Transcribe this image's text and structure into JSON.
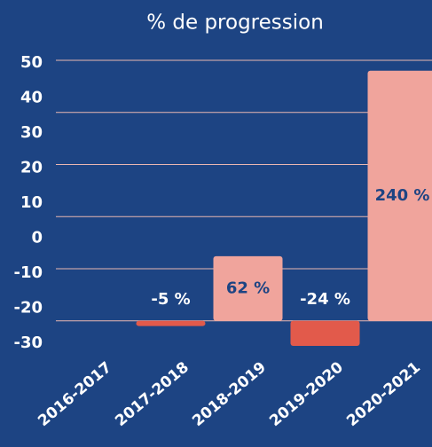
{
  "chart_data": {
    "type": "bar",
    "title": "% de progression",
    "categories": [
      "2016-2017",
      "2017-2018",
      "2018-2019",
      "2019-2020",
      "2020-2021"
    ],
    "values": [
      null,
      -5,
      62,
      -24,
      240
    ],
    "value_labels": [
      null,
      "-5 %",
      "62 %",
      "-24 %",
      "240 %"
    ],
    "colors": [
      null,
      "#e25a4b",
      "#f0a49c",
      "#e25a4b",
      "#f0a49c"
    ],
    "axis": "y2",
    "ylim": [
      -30,
      50
    ],
    "yticks": [
      -30,
      -20,
      -10,
      0,
      10,
      20,
      30,
      40,
      50
    ],
    "y2lim": [
      -30,
      250
    ],
    "y2ticks": [
      0,
      50,
      100,
      150,
      200,
      250
    ],
    "grid": true
  }
}
